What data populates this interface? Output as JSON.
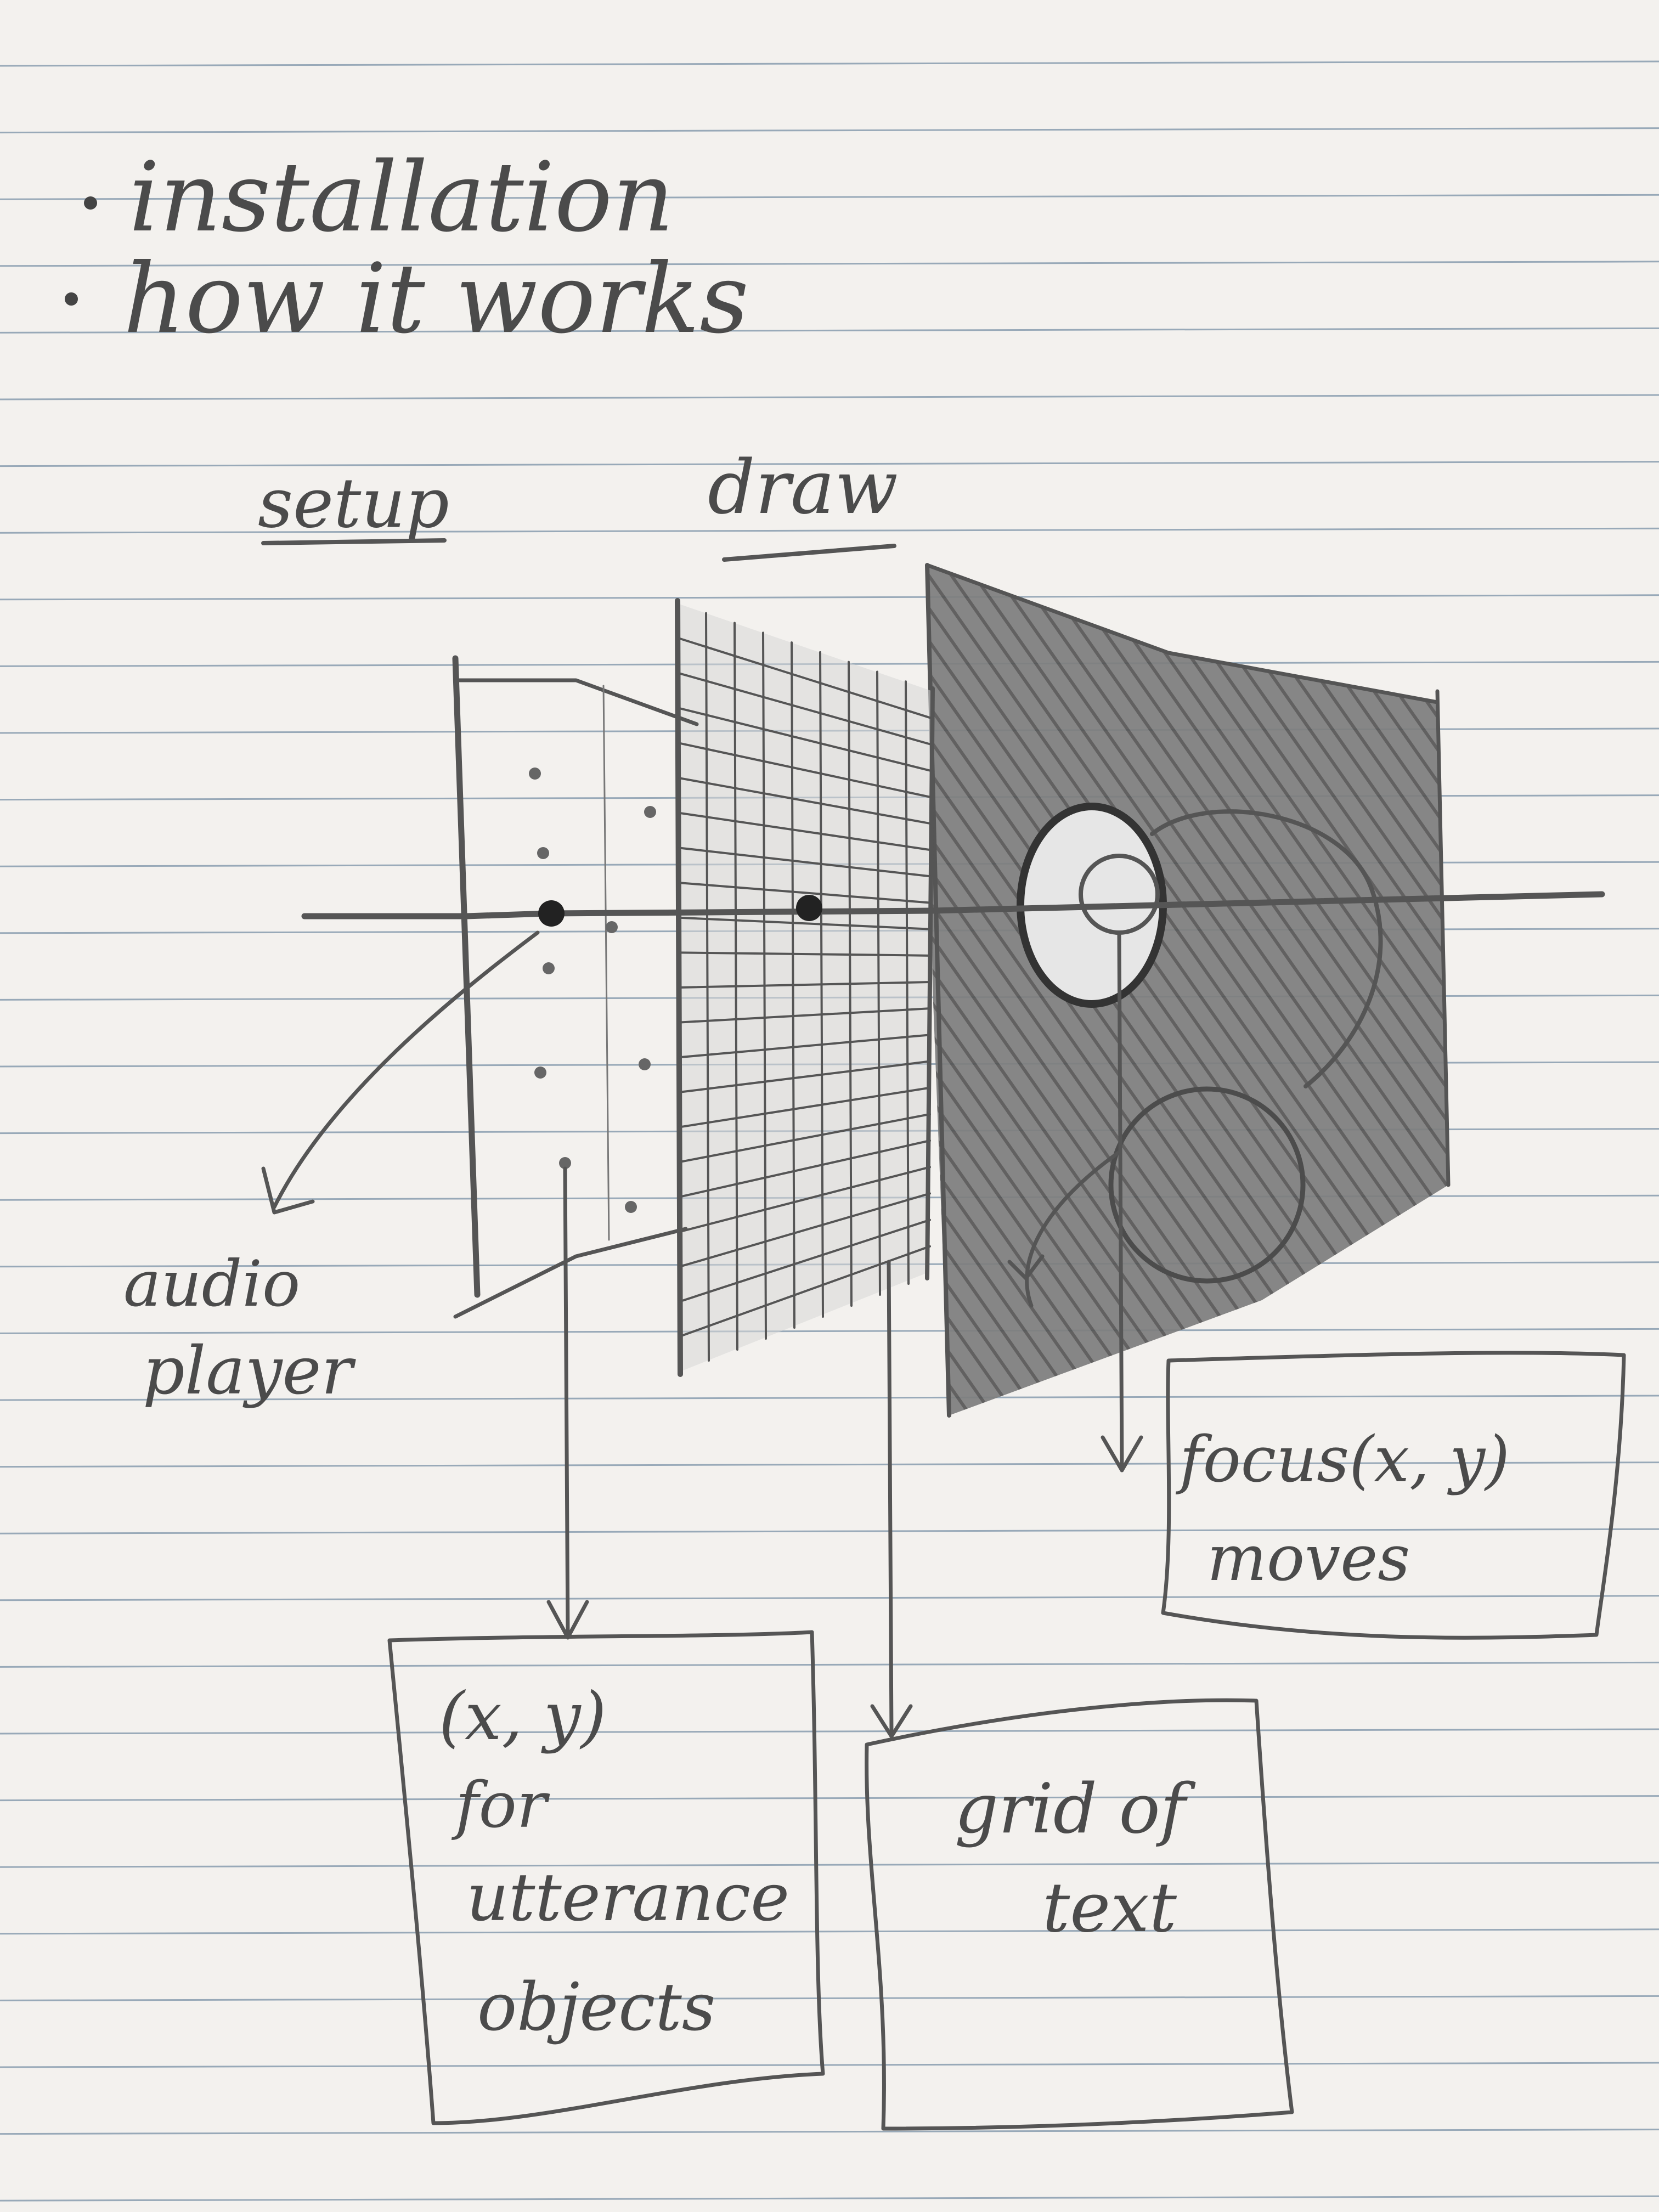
{
  "notes": {
    "bullets": [
      "installation",
      "how it works"
    ]
  },
  "diagram": {
    "headings": {
      "setup": "setup",
      "draw": "draw"
    },
    "side_label": {
      "line1": "audio",
      "line2": "player"
    },
    "boxes": {
      "xy": {
        "line1": "(x, y)",
        "line2": "for",
        "line3": "utterance",
        "line4": "objects"
      },
      "grid": {
        "line1": "grid of",
        "line2": "text"
      },
      "focus": {
        "line1": "focus(x, y)",
        "line2": "moves"
      }
    }
  }
}
